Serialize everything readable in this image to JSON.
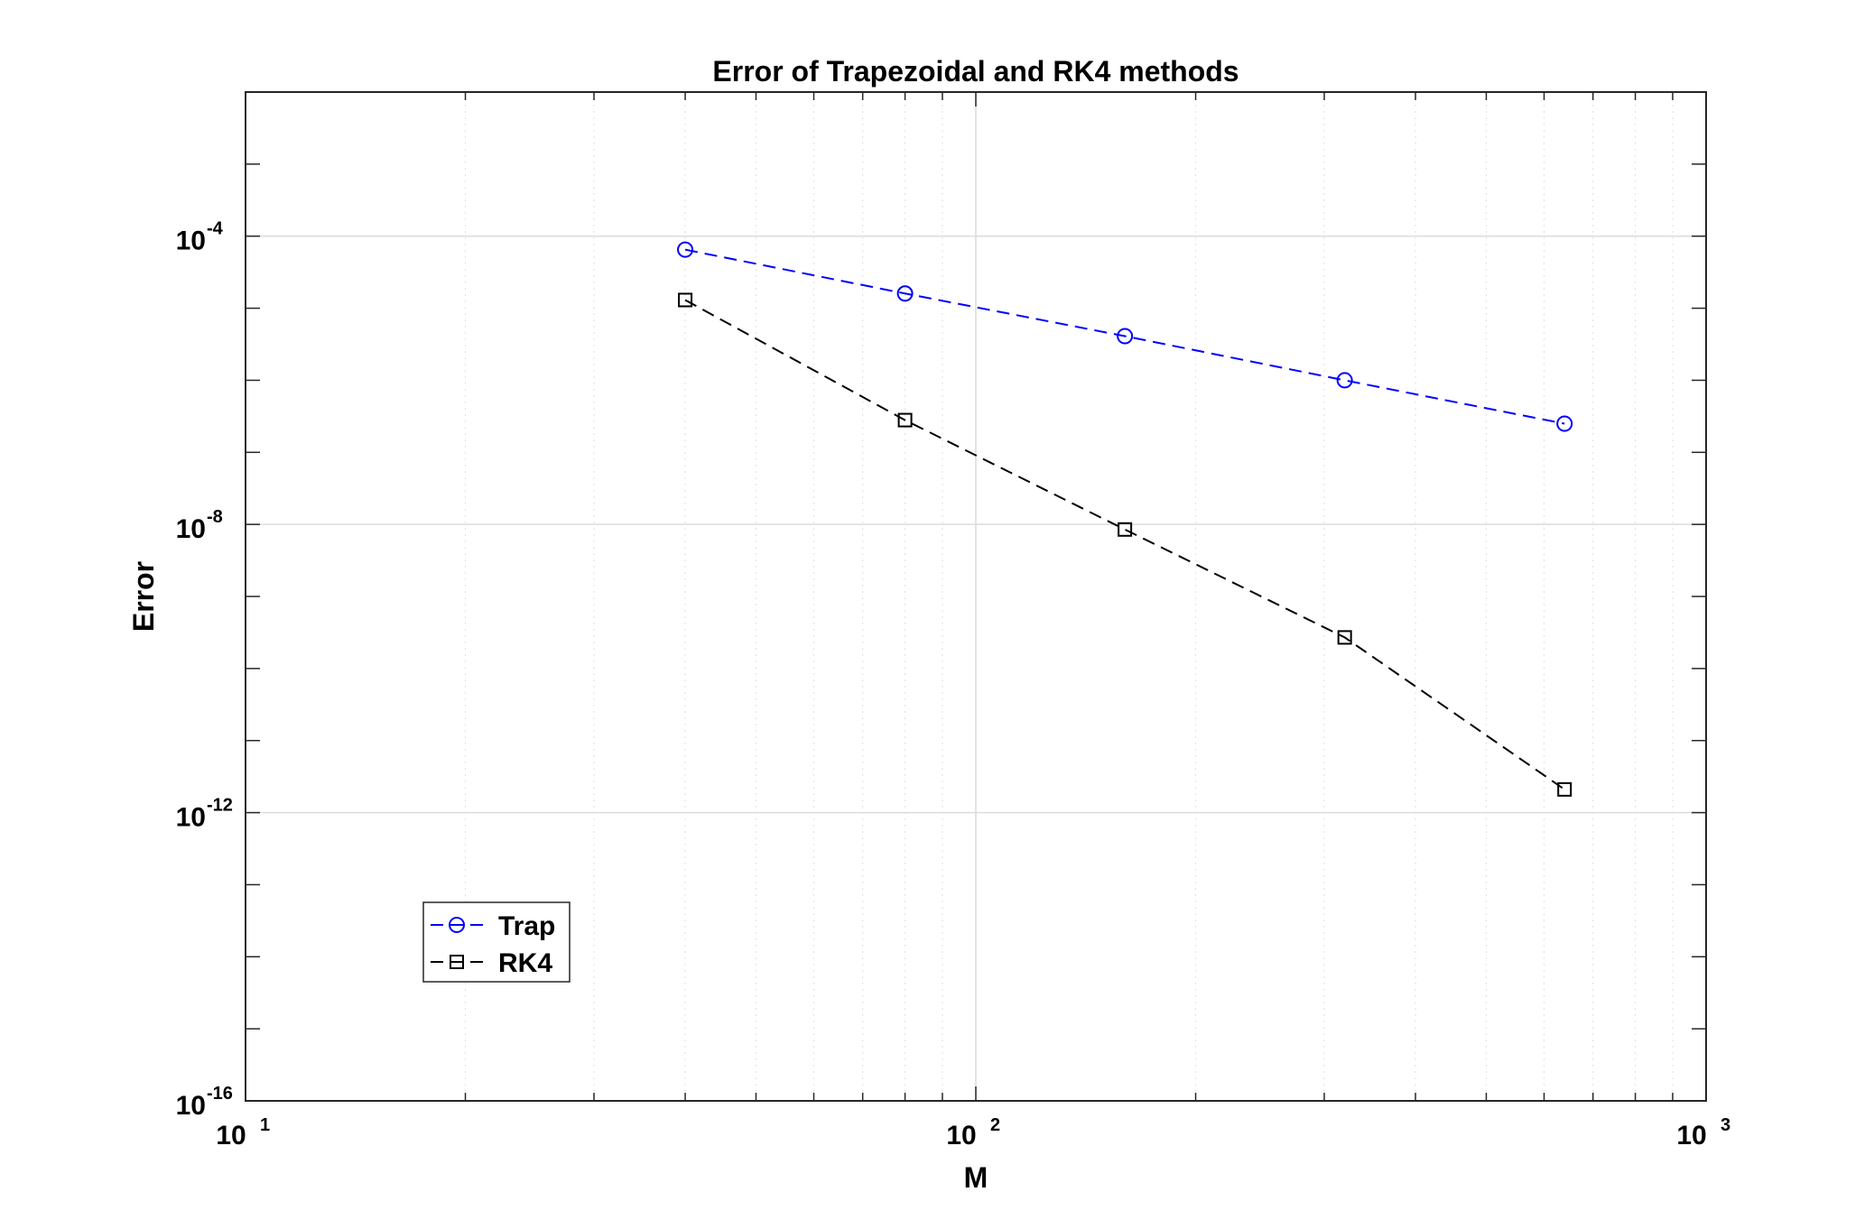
{
  "chart_data": {
    "type": "line",
    "title": "Error of Trapezoidal and RK4 methods",
    "xlabel": "M",
    "ylabel": "Error",
    "xscale": "log",
    "yscale": "log",
    "xlim": [
      10,
      1000
    ],
    "ylim": [
      1e-16,
      0.01
    ],
    "grid": true,
    "legend_placement": "bottom-left",
    "x_ticks": [
      {
        "base": "10",
        "exp": "1",
        "value": 10
      },
      {
        "base": "10",
        "exp": "2",
        "value": 100
      },
      {
        "base": "10",
        "exp": "3",
        "value": 1000
      }
    ],
    "y_ticks": [
      {
        "base": "10",
        "exp": "-4",
        "value": 0.0001
      },
      {
        "base": "10",
        "exp": "-8",
        "value": 1e-08
      },
      {
        "base": "10",
        "exp": "-12",
        "value": 1e-12
      },
      {
        "base": "10",
        "exp": "-16",
        "value": 1e-16
      }
    ],
    "x": [
      40,
      80,
      160,
      320,
      640
    ],
    "series": [
      {
        "name": "Trap",
        "color": "#0000ff",
        "marker": "circle",
        "line": "dashed",
        "values": [
          6.5e-05,
          1.6e-05,
          4.1e-06,
          1e-06,
          2.5e-07
        ]
      },
      {
        "name": "RK4",
        "color": "#000000",
        "marker": "square",
        "line": "dashed",
        "values": [
          1.3e-05,
          2.8e-07,
          8.5e-09,
          2.7e-10,
          2.1e-12
        ]
      }
    ]
  }
}
